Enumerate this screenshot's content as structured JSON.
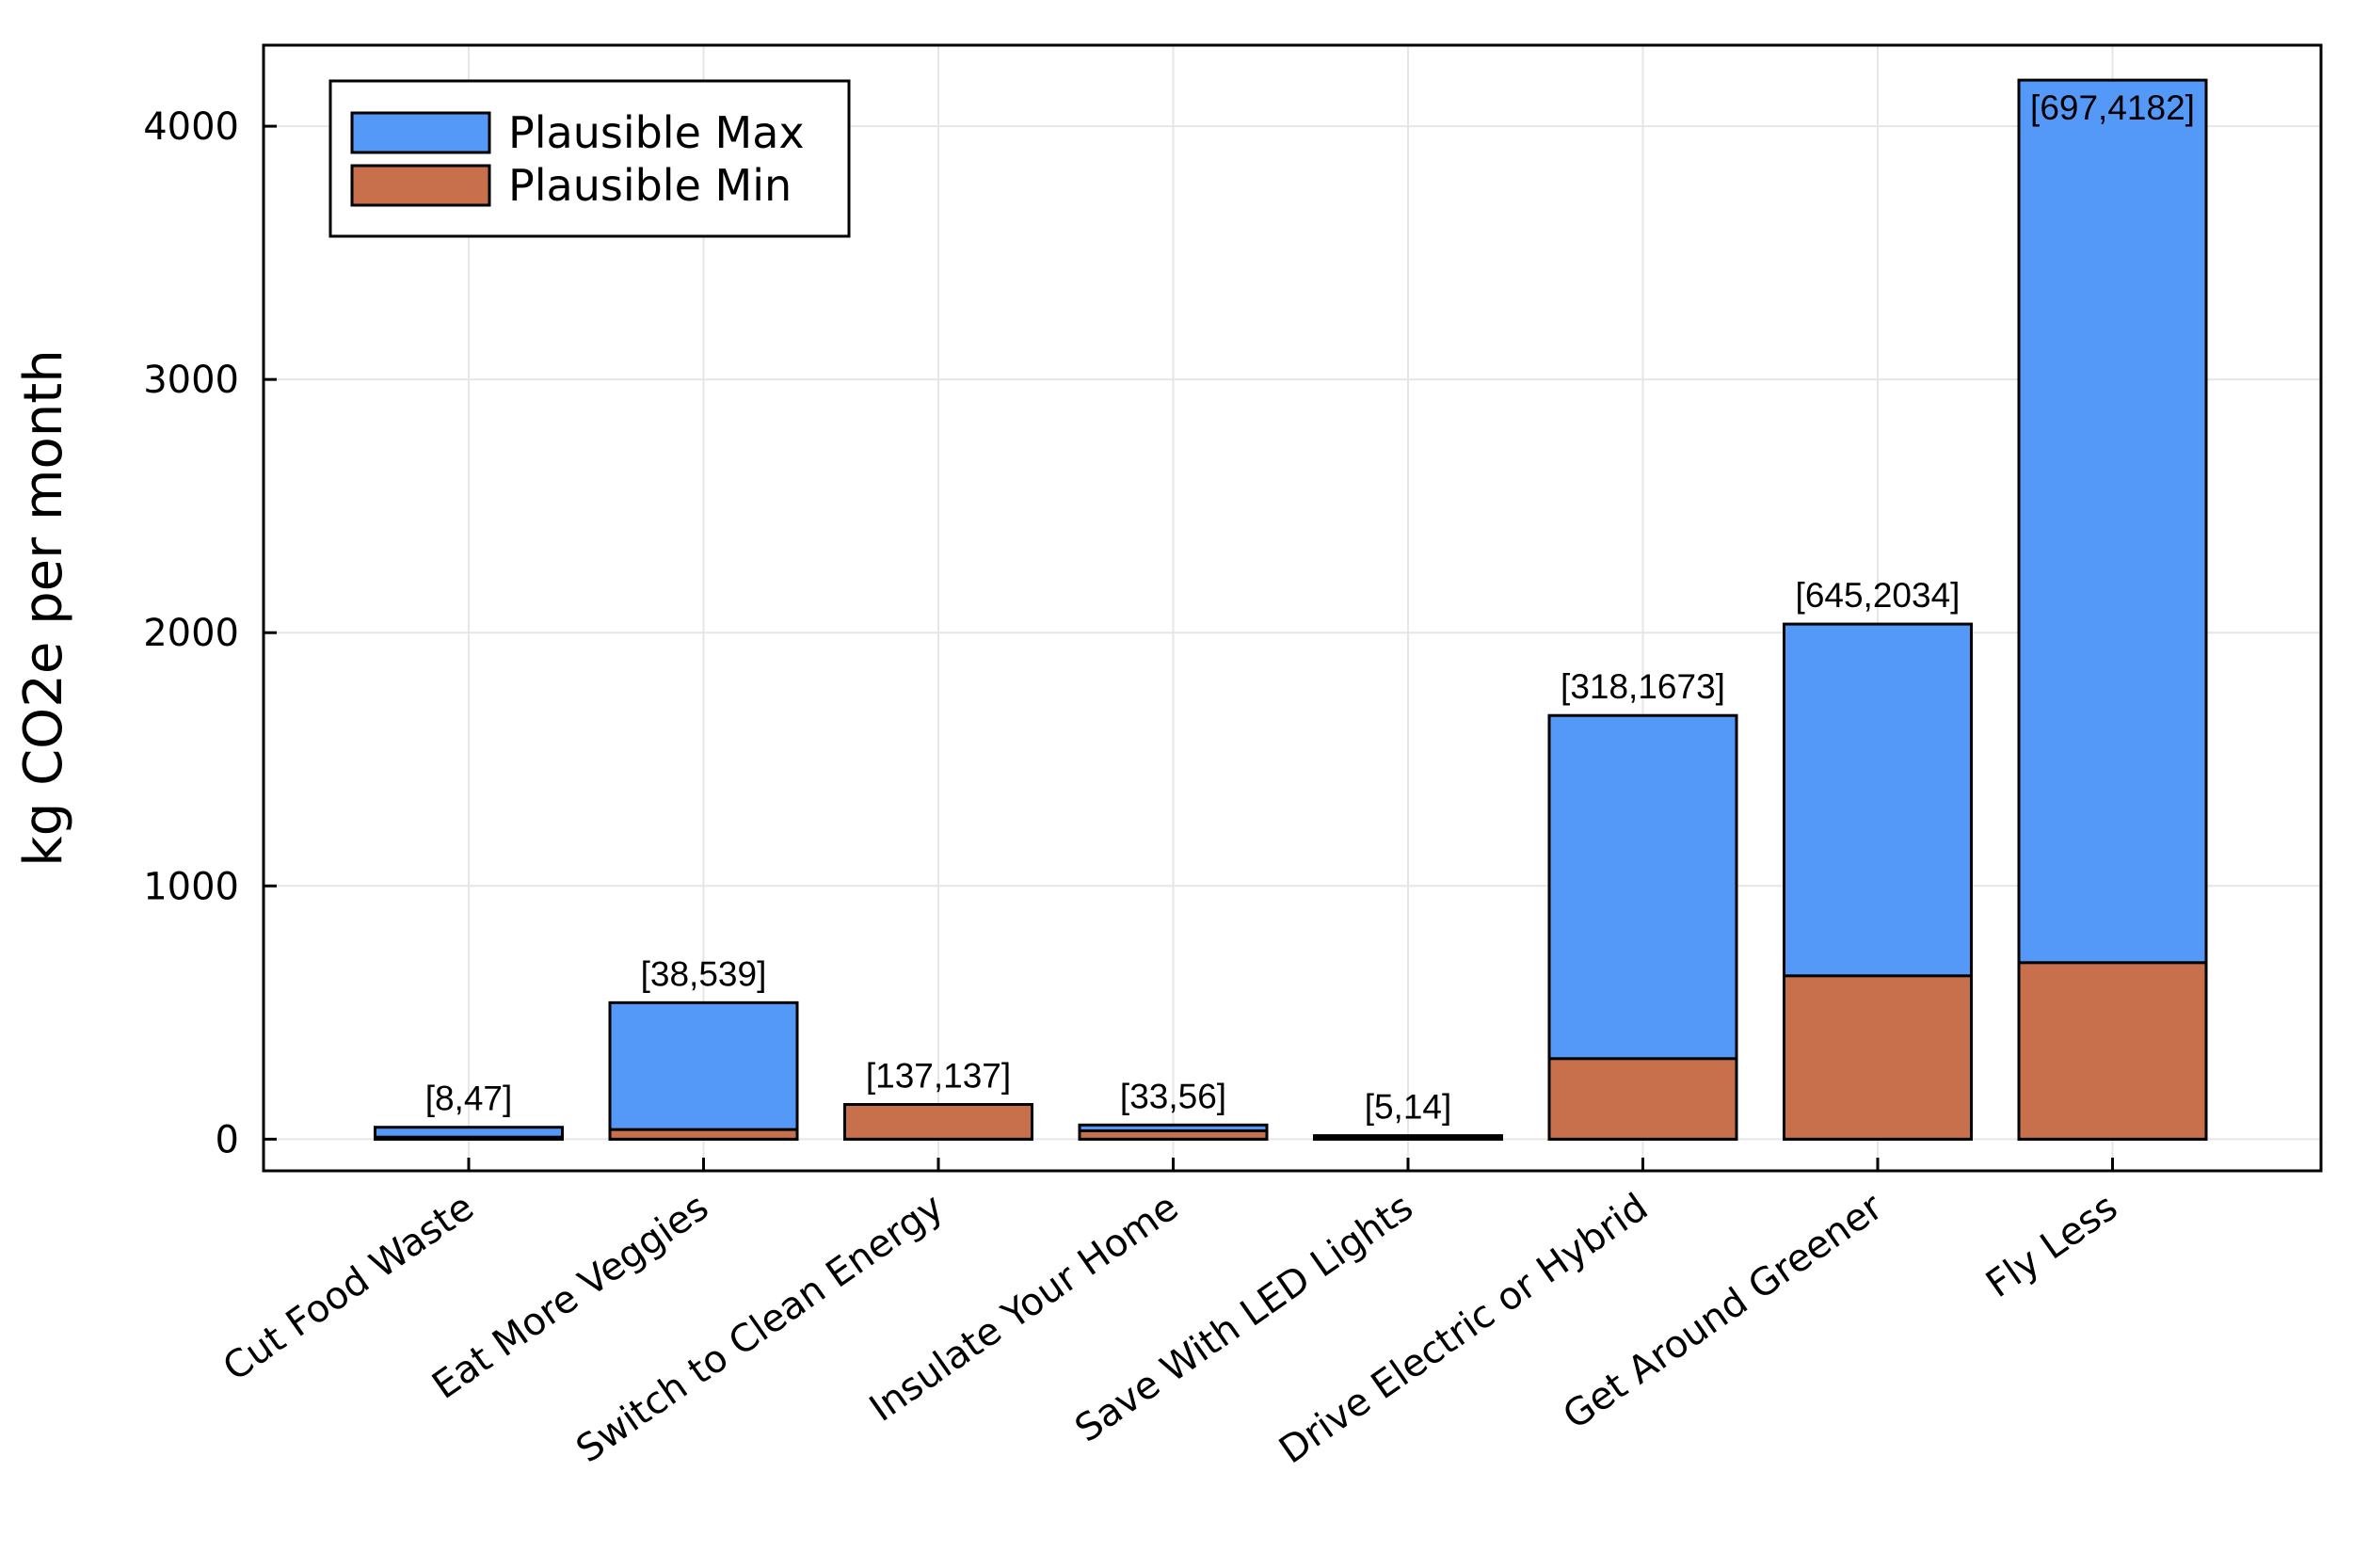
{
  "chart_data": {
    "type": "bar",
    "stacked": false,
    "overlay": true,
    "categories": [
      "Cut Food Waste",
      "Eat More Veggies",
      "Switch to Clean Energy",
      "Insulate Your Home",
      "Save With LED Lights",
      "Drive Electric or Hybrid",
      "Get Around Greener",
      "Fly Less"
    ],
    "series": [
      {
        "name": "Plausible Max",
        "color": "#5599f8",
        "values": [
          47,
          539,
          137,
          56,
          14,
          1673,
          2034,
          4182
        ]
      },
      {
        "name": "Plausible Min",
        "color": "#c8704c",
        "values": [
          8,
          38,
          137,
          33,
          5,
          318,
          645,
          697
        ]
      }
    ],
    "data_labels": [
      "[8,47]",
      "[38,539]",
      "[137,137]",
      "[33,56]",
      "[5,14]",
      "[318,1673]",
      "[645,2034]",
      "[697,4182]"
    ],
    "xlabel": "",
    "ylabel": "kg CO2e per month",
    "ylim": [
      -125,
      4320
    ],
    "yticks": [
      0,
      1000,
      2000,
      3000,
      4000
    ],
    "grid": true,
    "legend_position": "top-left"
  }
}
